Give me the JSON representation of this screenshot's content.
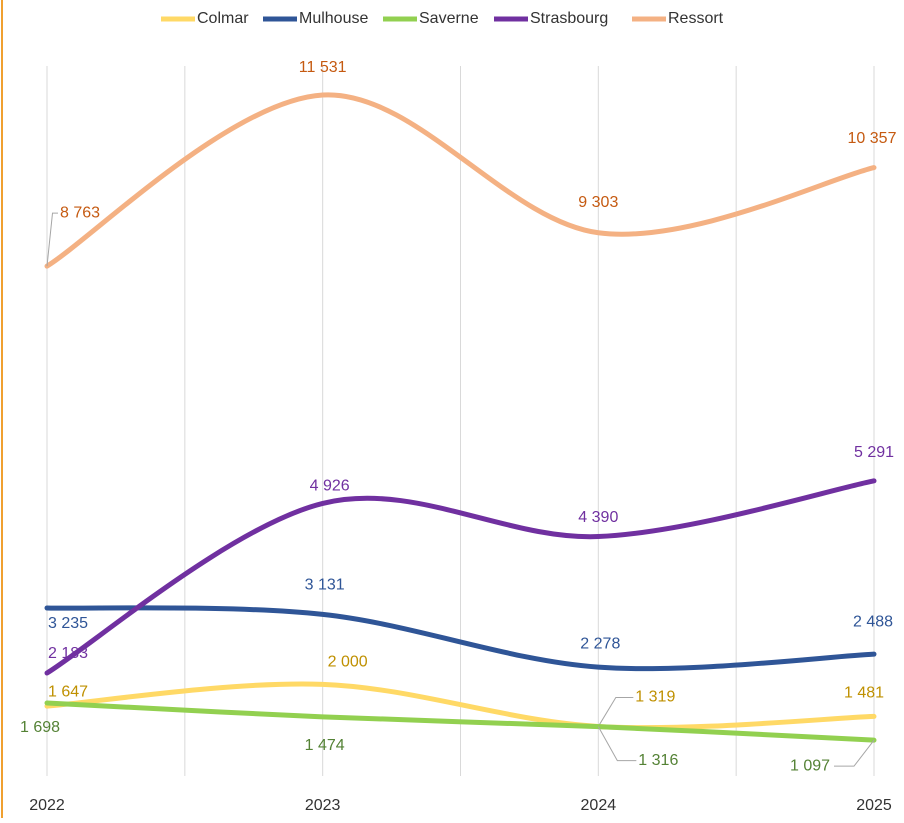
{
  "chart_data": {
    "type": "line",
    "categories": [
      "2022",
      "2023",
      "2024",
      "2025"
    ],
    "series": [
      {
        "name": "Colmar",
        "color": "#ffd966",
        "label_color": "#bf9000",
        "values": [
          1647,
          2000,
          1319,
          1481
        ],
        "value_labels": [
          "1 647",
          "2 000",
          "1 319",
          "1 481"
        ]
      },
      {
        "name": "Mulhouse",
        "color": "#2f5597",
        "label_color": "#2f5597",
        "values": [
          3235,
          3131,
          2278,
          2488
        ],
        "value_labels": [
          "3 235",
          "3 131",
          "2 278",
          "2 488"
        ]
      },
      {
        "name": "Saverne",
        "color": "#92d050",
        "label_color": "#548235",
        "values": [
          1698,
          1474,
          1316,
          1097
        ],
        "value_labels": [
          "1 698",
          "1 474",
          "1 316",
          "1 097"
        ]
      },
      {
        "name": "Strasbourg",
        "color": "#7030a0",
        "label_color": "#7030a0",
        "values": [
          2183,
          4926,
          4390,
          5291
        ],
        "value_labels": [
          "2 183",
          "4 926",
          "4 390",
          "5 291"
        ]
      },
      {
        "name": "Ressort",
        "color": "#f4b183",
        "label_color": "#c55a11",
        "values": [
          8763,
          11531,
          9303,
          10357
        ],
        "value_labels": [
          "8 763",
          "11 531",
          "9 303",
          "10 357"
        ]
      }
    ],
    "ylim": [
      0,
      12000
    ],
    "smooth": true,
    "legend": "top",
    "grid": true
  }
}
